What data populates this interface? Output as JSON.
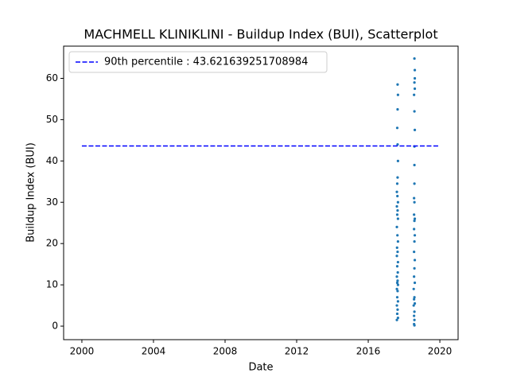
{
  "chart_data": {
    "type": "scatter",
    "title": "MACHMELL KLINIKLINI - Buildup Index (BUI), Scatterplot",
    "x_label": "Date",
    "y_label": "Buildup Index (BUI)",
    "xlim": [
      1998.98,
      2021.02
    ],
    "ylim": [
      -3.27,
      67.8
    ],
    "xticks": [
      2000,
      2004,
      2008,
      2012,
      2016,
      2020
    ],
    "yticks": [
      0,
      10,
      20,
      30,
      40,
      50,
      60
    ],
    "legend": "upper left",
    "reference_line": {
      "name": "90th percentile : 43.621639251708984",
      "value": 43.621639251708984,
      "x": [
        2000,
        2020
      ],
      "color": "#0000ff"
    },
    "series": [
      {
        "color": "#1f77b4",
        "x": [
          2017.64,
          2017.66,
          2017.64,
          2017.62,
          2017.64,
          2017.66,
          2017.64,
          2017.62,
          2017.6,
          2017.63,
          2017.66,
          2017.6,
          2017.64,
          2017.62,
          2017.66,
          2017.6,
          2017.63,
          2017.66,
          2017.61,
          2017.64,
          2017.6,
          2017.66,
          2017.62,
          2017.65,
          2017.6,
          2017.64,
          2017.62,
          2017.66,
          2017.6,
          2017.64,
          2017.62,
          2017.66,
          2017.6,
          2017.64,
          2017.62,
          2017.66,
          2017.6,
          2018.58,
          2018.6,
          2018.6,
          2018.58,
          2018.6,
          2018.56,
          2018.58,
          2018.6,
          2018.58,
          2018.58,
          2018.58,
          2018.56,
          2018.58,
          2018.56,
          2018.6,
          2018.58,
          2018.56,
          2018.6,
          2018.58,
          2018.56,
          2018.6,
          2018.58,
          2018.56,
          2018.6,
          2018.54,
          2018.58,
          2018.56,
          2018.6,
          2018.54,
          2018.58,
          2018.56,
          2018.58,
          2018.56,
          2018.58
        ],
        "values": [
          58.5,
          56,
          52.5,
          48,
          44,
          40,
          36,
          34.5,
          32.5,
          31.5,
          30,
          29,
          28,
          27,
          26,
          24,
          22,
          20.5,
          19,
          18,
          17,
          15.5,
          14.5,
          13,
          12,
          11,
          10.5,
          10,
          9,
          8.5,
          7,
          6,
          5,
          4,
          3,
          2,
          1.5,
          64.8,
          62,
          60,
          59,
          57.5,
          56,
          52,
          47.5,
          43.5,
          39,
          34.5,
          31,
          30,
          27,
          26,
          25.5,
          23.5,
          22,
          20.5,
          18,
          16,
          14,
          12,
          10.5,
          9,
          7,
          6.5,
          5.5,
          5,
          3.5,
          2.5,
          1.5,
          0.5,
          0.2
        ]
      }
    ]
  }
}
